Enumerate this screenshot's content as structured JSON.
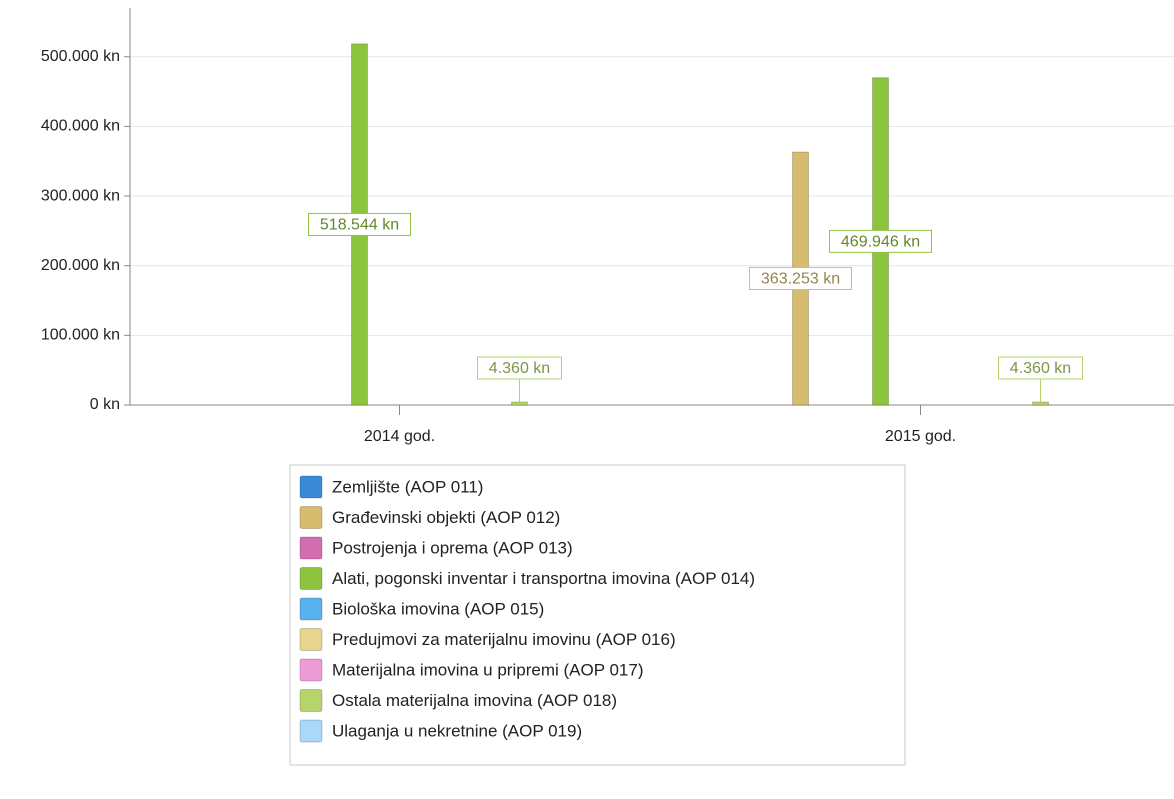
{
  "chart_data": {
    "type": "bar",
    "categories": [
      "2014 god.",
      "2015 god."
    ],
    "series": [
      {
        "name": "Zemljište (AOP 011)",
        "color": "#3a8ad8",
        "values": [
          0,
          0
        ]
      },
      {
        "name": "Građevinski objekti (AOP 012)",
        "color": "#d6bc6e",
        "values": [
          0,
          363253
        ],
        "value_labels": [
          null,
          "363.253 kn"
        ]
      },
      {
        "name": "Postrojenja i oprema (AOP 013)",
        "color": "#d46cb0",
        "values": [
          0,
          0
        ]
      },
      {
        "name": "Alati, pogonski inventar i transportna imovina (AOP 014)",
        "color": "#8cc43e",
        "values": [
          518544,
          469946
        ],
        "value_labels": [
          "518.544 kn",
          "469.946 kn"
        ]
      },
      {
        "name": "Biološka imovina (AOP 015)",
        "color": "#58b2ee",
        "values": [
          0,
          0
        ]
      },
      {
        "name": "Predujmovi za materijalnu imovinu (AOP 016)",
        "color": "#e8d48e",
        "values": [
          0,
          0
        ]
      },
      {
        "name": "Materijalna imovina u pripremi (AOP 017)",
        "color": "#ee9cd6",
        "values": [
          0,
          0
        ]
      },
      {
        "name": "Ostala materijalna imovina (AOP 018)",
        "color": "#b6d46c",
        "values": [
          4360,
          4360
        ],
        "value_labels": [
          "4.360 kn",
          "4.360 kn"
        ]
      },
      {
        "name": "Ulaganja u nekretnine (AOP 019)",
        "color": "#a8d8fa",
        "values": [
          0,
          0
        ]
      }
    ],
    "ylim": [
      0,
      570000
    ],
    "yticks": [
      {
        "value": 0,
        "label": "0 kn"
      },
      {
        "value": 100000,
        "label": "100.000 kn"
      },
      {
        "value": 200000,
        "label": "200.000 kn"
      },
      {
        "value": 300000,
        "label": "300.000 kn"
      },
      {
        "value": 400000,
        "label": "400.000 kn"
      },
      {
        "value": 500000,
        "label": "500.000 kn"
      }
    ],
    "grid": true,
    "legend": "bottom"
  }
}
